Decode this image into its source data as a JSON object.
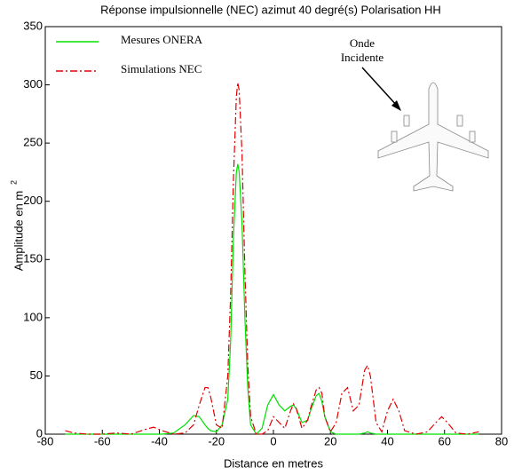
{
  "chart_data": {
    "type": "line",
    "title": "Réponse impulsionnelle (NEC) azimut 40 degré(s) Polarisation HH",
    "xlabel": "Distance en metres",
    "ylabel": "Amplitude en m",
    "ylabel_sup": "2",
    "annotation": [
      "Onde",
      "Incidente"
    ],
    "legend": "upper left",
    "xlim": [
      -80,
      80
    ],
    "xticks": [
      -80,
      -60,
      -40,
      -20,
      0,
      20,
      40,
      60,
      80
    ],
    "ylim": [
      0,
      350
    ],
    "yticks": [
      0,
      50,
      100,
      150,
      200,
      250,
      300,
      350
    ],
    "x": [
      -73,
      -70,
      -65,
      -60,
      -55,
      -50,
      -45,
      -42,
      -39,
      -35,
      -31,
      -28,
      -26,
      -24,
      -23,
      -22,
      -20,
      -18,
      -16,
      -15,
      -14,
      -13,
      -12.5,
      -12,
      -11,
      -10,
      -9,
      -8,
      -6,
      -4,
      -2,
      0,
      2,
      4,
      6,
      7,
      8,
      10,
      12,
      13,
      15,
      16,
      17,
      18,
      20,
      22,
      24,
      26,
      28,
      30,
      32,
      33,
      34,
      36,
      38,
      40,
      42,
      44,
      46,
      50,
      54,
      57,
      59,
      61,
      64,
      68,
      72
    ],
    "series": [
      {
        "name": "Mesures ONERA",
        "color": "#00e000",
        "dash": "solid",
        "values": [
          0,
          0,
          0,
          0,
          0,
          0,
          0,
          0,
          0,
          1,
          8,
          16,
          15,
          8,
          5,
          3,
          2,
          8,
          30,
          80,
          170,
          225,
          232,
          225,
          180,
          100,
          40,
          8,
          0,
          5,
          25,
          34,
          25,
          20,
          24,
          25,
          22,
          10,
          12,
          20,
          33,
          35,
          28,
          15,
          2,
          0,
          0,
          0,
          0,
          0,
          1,
          2,
          1,
          0,
          0,
          0,
          0,
          0,
          0,
          0,
          0,
          0,
          0,
          0,
          0,
          0,
          0
        ]
      },
      {
        "name": "Simulations NEC",
        "color": "#e00000",
        "dash": "dashdot",
        "values": [
          3,
          1,
          0,
          0,
          1,
          0,
          4,
          6,
          3,
          0,
          1,
          8,
          25,
          40,
          40,
          32,
          8,
          5,
          50,
          120,
          220,
          290,
          302,
          295,
          240,
          140,
          60,
          15,
          0,
          0,
          3,
          15,
          10,
          5,
          20,
          26,
          22,
          5,
          12,
          22,
          38,
          40,
          35,
          15,
          2,
          10,
          35,
          40,
          20,
          25,
          55,
          59,
          50,
          10,
          2,
          20,
          30,
          20,
          3,
          0,
          2,
          10,
          15,
          10,
          1,
          0,
          2
        ]
      }
    ]
  }
}
